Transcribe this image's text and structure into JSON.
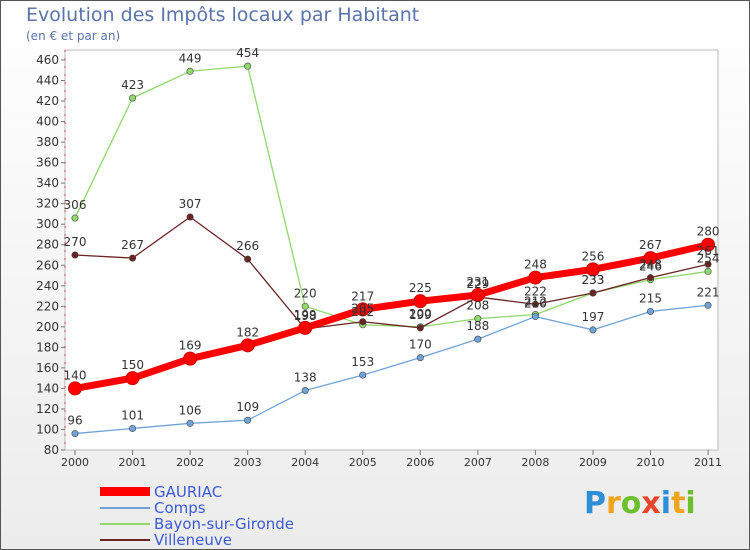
{
  "header": {
    "title": "Evolution des Impôts locaux par Habitant",
    "subtitle": "(en € et par an)"
  },
  "chart_data": {
    "type": "line",
    "title": "Evolution des Impôts locaux par Habitant",
    "subtitle": "(en € et par an)",
    "xlabel": "",
    "ylabel": "",
    "ylim": [
      80,
      460
    ],
    "ytick_step": 20,
    "grid": false,
    "legend_position": "bottom-left",
    "categories": [
      "2000",
      "2001",
      "2002",
      "2003",
      "2004",
      "2005",
      "2006",
      "2007",
      "2008",
      "2009",
      "2010",
      "2011"
    ],
    "series": [
      {
        "name": "GAURIAC",
        "color": "#ff0000",
        "values": [
          140,
          150,
          169,
          182,
          199,
          217,
          225,
          231,
          248,
          256,
          267,
          280
        ],
        "labels": [
          "140",
          "150",
          "169",
          "182",
          "199",
          "217",
          "225",
          "231",
          "248",
          "256",
          "267",
          "280"
        ]
      },
      {
        "name": "Comps",
        "color": "#6fa3d8",
        "values": [
          96,
          101,
          106,
          109,
          138,
          153,
          170,
          188,
          210,
          197,
          215,
          221
        ],
        "labels": [
          "96",
          "101",
          "106",
          "109",
          "138",
          "153",
          "170",
          "188",
          "210",
          "197",
          "215",
          "221"
        ]
      },
      {
        "name": "Bayon-sur-Gironde",
        "color": "#8fd86a",
        "values": [
          306,
          423,
          449,
          454,
          220,
          202,
          200,
          208,
          212,
          233,
          246,
          254
        ],
        "labels": [
          "306",
          "423",
          "449",
          "454",
          "220",
          "202",
          "200",
          "208",
          "212",
          "233",
          "246",
          "254"
        ]
      },
      {
        "name": "Villeneuve",
        "color": "#6b2424",
        "values": [
          270,
          267,
          307,
          266,
          198,
          205,
          199,
          229,
          222,
          233,
          248,
          261
        ],
        "labels": [
          "270",
          "267",
          "307",
          "266",
          "198",
          "205",
          "199",
          "229",
          "222",
          "233",
          "248",
          "261"
        ]
      }
    ]
  },
  "legend": {
    "items": [
      "GAURIAC",
      "Comps",
      "Bayon-sur-Gironde",
      "Villeneuve"
    ]
  },
  "logo": {
    "letters": [
      "P",
      "r",
      "o",
      "x",
      "i",
      "t",
      "i"
    ],
    "colors": [
      "#2e8fd6",
      "#f2a31c",
      "#6cbf2e",
      "#e8452c",
      "#2e8fd6",
      "#f2a31c",
      "#6cbf2e"
    ]
  }
}
